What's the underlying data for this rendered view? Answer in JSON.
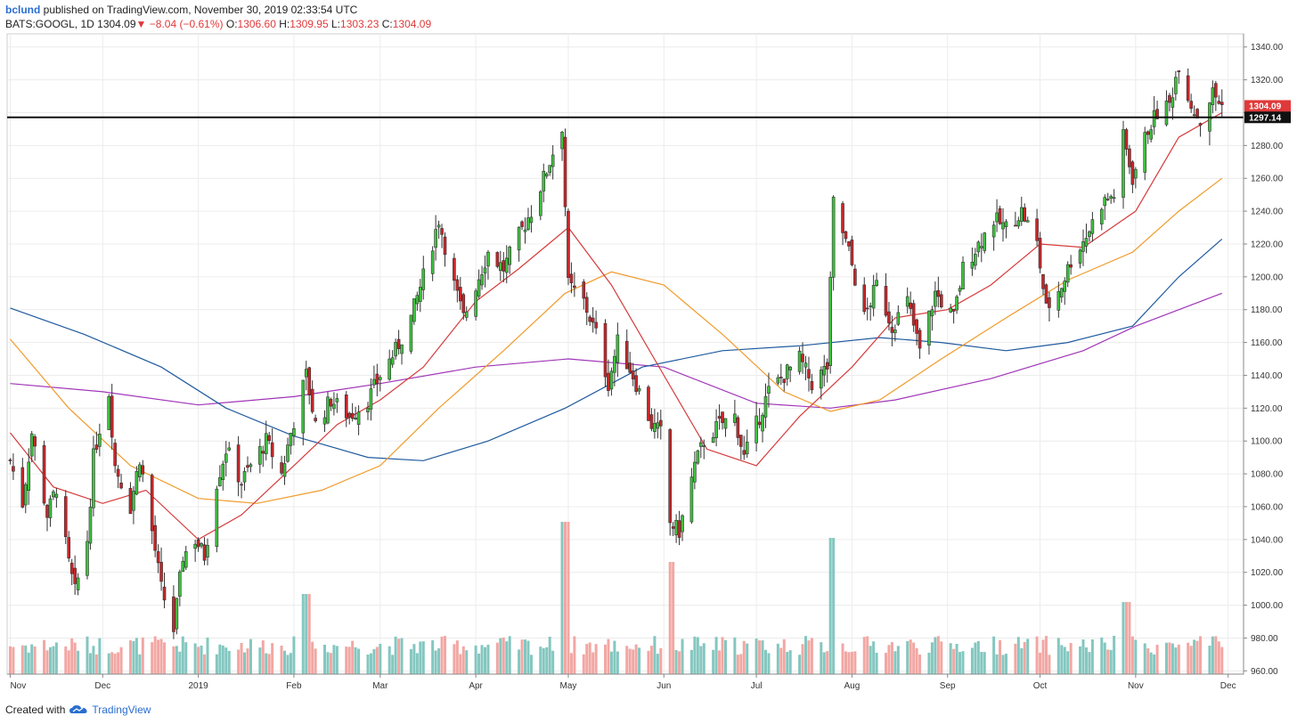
{
  "header": {
    "user": "bclund",
    "published_text": " published on TradingView.com, November 30, 2019 02:33:54 UTC",
    "symbol": "BATS:GOOGL, 1D",
    "last": "1304.09",
    "change": "−8.04 (−0.61%)",
    "o_label": "O:",
    "o_value": "1306.60",
    "h_label": "H:",
    "h_value": "1309.95",
    "l_label": "L:",
    "l_value": "1303.23",
    "c_label": "C:",
    "c_value": "1304.09"
  },
  "footer": {
    "created_with": "Created with",
    "brand": "TradingView"
  },
  "colors": {
    "up": "#3ec23e",
    "down": "#c8262a",
    "vol_up": "#84c7c0",
    "vol_down": "#f2a7a3",
    "ma20": "#d63a3a",
    "ma50": "#f09a2a",
    "ma100": "#1f5a9e",
    "ma200": "#a035b8",
    "price_tag": "#e0393a",
    "level_tag": "#111111"
  },
  "chart_data": {
    "type": "candlestick",
    "ylim": [
      958,
      1348
    ],
    "y_ticks": [
      "1340.00",
      "1320.00",
      "1300.00",
      "1280.00",
      "1260.00",
      "1240.00",
      "1220.00",
      "1200.00",
      "1180.00",
      "1160.00",
      "1140.00",
      "1120.00",
      "1100.00",
      "1080.00",
      "1060.00",
      "1040.00",
      "1020.00",
      "1000.00",
      "980.00",
      "960.00"
    ],
    "x_labels": [
      {
        "label": "Nov",
        "date": "2018-11-01"
      },
      {
        "label": "Dec",
        "date": "2018-12-01"
      },
      {
        "label": "2019",
        "date": "2019-01-01"
      },
      {
        "label": "Feb",
        "date": "2019-02-01"
      },
      {
        "label": "Mar",
        "date": "2019-03-01"
      },
      {
        "label": "Apr",
        "date": "2019-04-01"
      },
      {
        "label": "May",
        "date": "2019-05-01"
      },
      {
        "label": "Jun",
        "date": "2019-06-01"
      },
      {
        "label": "Jul",
        "date": "2019-07-01"
      },
      {
        "label": "Aug",
        "date": "2019-08-01"
      },
      {
        "label": "Sep",
        "date": "2019-09-01"
      },
      {
        "label": "Oct",
        "date": "2019-10-01"
      },
      {
        "label": "Nov",
        "date": "2019-11-01"
      },
      {
        "label": "Dec",
        "date": "2019-12-01"
      }
    ],
    "price_path": [
      [
        "2018-11-01",
        1088
      ],
      [
        "2018-11-05",
        1062
      ],
      [
        "2018-11-08",
        1105
      ],
      [
        "2018-11-13",
        1055
      ],
      [
        "2018-11-16",
        1072
      ],
      [
        "2018-11-20",
        1025
      ],
      [
        "2018-11-22",
        1008
      ],
      [
        "2018-11-26",
        1040
      ],
      [
        "2018-11-28",
        1090
      ],
      [
        "2018-11-30",
        1108
      ],
      [
        "2018-12-03",
        1130
      ],
      [
        "2018-12-05",
        1085
      ],
      [
        "2018-12-10",
        1060
      ],
      [
        "2018-12-13",
        1090
      ],
      [
        "2018-12-17",
        1045
      ],
      [
        "2018-12-20",
        1010
      ],
      [
        "2018-12-24",
        985
      ],
      [
        "2018-12-27",
        1030
      ],
      [
        "2018-12-31",
        1040
      ],
      [
        "2019-01-03",
        1030
      ],
      [
        "2019-01-07",
        1075
      ],
      [
        "2019-01-10",
        1095
      ],
      [
        "2019-01-15",
        1075
      ],
      [
        "2019-01-18",
        1085
      ],
      [
        "2019-01-23",
        1100
      ],
      [
        "2019-01-28",
        1080
      ],
      [
        "2019-01-31",
        1105
      ],
      [
        "2019-02-05",
        1140
      ],
      [
        "2019-02-08",
        1110
      ],
      [
        "2019-02-13",
        1125
      ],
      [
        "2019-02-19",
        1115
      ],
      [
        "2019-02-25",
        1125
      ],
      [
        "2019-03-01",
        1140
      ],
      [
        "2019-03-06",
        1155
      ],
      [
        "2019-03-11",
        1175
      ],
      [
        "2019-03-15",
        1200
      ],
      [
        "2019-03-20",
        1235
      ],
      [
        "2019-03-25",
        1195
      ],
      [
        "2019-03-28",
        1175
      ],
      [
        "2019-04-02",
        1200
      ],
      [
        "2019-04-05",
        1215
      ],
      [
        "2019-04-10",
        1205
      ],
      [
        "2019-04-15",
        1225
      ],
      [
        "2019-04-19",
        1240
      ],
      [
        "2019-04-24",
        1265
      ],
      [
        "2019-04-29",
        1292
      ],
      [
        "2019-05-01",
        1195
      ],
      [
        "2019-05-06",
        1185
      ],
      [
        "2019-05-10",
        1165
      ],
      [
        "2019-05-14",
        1135
      ],
      [
        "2019-05-17",
        1160
      ],
      [
        "2019-05-22",
        1140
      ],
      [
        "2019-05-28",
        1110
      ],
      [
        "2019-05-31",
        1105
      ],
      [
        "2019-06-03",
        1050
      ],
      [
        "2019-06-06",
        1045
      ],
      [
        "2019-06-11",
        1085
      ],
      [
        "2019-06-14",
        1100
      ],
      [
        "2019-06-19",
        1110
      ],
      [
        "2019-06-24",
        1115
      ],
      [
        "2019-06-27",
        1090
      ],
      [
        "2019-07-01",
        1110
      ],
      [
        "2019-07-05",
        1130
      ],
      [
        "2019-07-10",
        1140
      ],
      [
        "2019-07-15",
        1150
      ],
      [
        "2019-07-19",
        1135
      ],
      [
        "2019-07-24",
        1145
      ],
      [
        "2019-07-26",
        1245
      ],
      [
        "2019-07-31",
        1215
      ],
      [
        "2019-08-05",
        1175
      ],
      [
        "2019-08-09",
        1195
      ],
      [
        "2019-08-14",
        1170
      ],
      [
        "2019-08-19",
        1185
      ],
      [
        "2019-08-23",
        1155
      ],
      [
        "2019-08-28",
        1190
      ],
      [
        "2019-09-03",
        1175
      ],
      [
        "2019-09-06",
        1205
      ],
      [
        "2019-09-11",
        1220
      ],
      [
        "2019-09-16",
        1235
      ],
      [
        "2019-09-20",
        1230
      ],
      [
        "2019-09-25",
        1240
      ],
      [
        "2019-09-30",
        1220
      ],
      [
        "2019-10-03",
        1180
      ],
      [
        "2019-10-08",
        1195
      ],
      [
        "2019-10-11",
        1210
      ],
      [
        "2019-10-16",
        1225
      ],
      [
        "2019-10-21",
        1245
      ],
      [
        "2019-10-25",
        1250
      ],
      [
        "2019-10-28",
        1285
      ],
      [
        "2019-10-31",
        1260
      ],
      [
        "2019-11-05",
        1290
      ],
      [
        "2019-11-08",
        1300
      ],
      [
        "2019-11-12",
        1305
      ],
      [
        "2019-11-15",
        1330
      ],
      [
        "2019-11-19",
        1305
      ],
      [
        "2019-11-22",
        1295
      ],
      [
        "2019-11-26",
        1312
      ],
      [
        "2019-11-29",
        1304
      ]
    ],
    "ma20": [
      [
        "2018-11-01",
        1105
      ],
      [
        "2018-11-15",
        1072
      ],
      [
        "2018-12-01",
        1062
      ],
      [
        "2018-12-15",
        1070
      ],
      [
        "2019-01-01",
        1040
      ],
      [
        "2019-01-15",
        1055
      ],
      [
        "2019-02-01",
        1085
      ],
      [
        "2019-02-15",
        1110
      ],
      [
        "2019-03-01",
        1125
      ],
      [
        "2019-03-15",
        1145
      ],
      [
        "2019-04-01",
        1185
      ],
      [
        "2019-04-15",
        1205
      ],
      [
        "2019-05-01",
        1230
      ],
      [
        "2019-05-15",
        1195
      ],
      [
        "2019-06-01",
        1140
      ],
      [
        "2019-06-15",
        1095
      ],
      [
        "2019-07-01",
        1085
      ],
      [
        "2019-07-15",
        1115
      ],
      [
        "2019-08-01",
        1145
      ],
      [
        "2019-08-15",
        1175
      ],
      [
        "2019-09-01",
        1180
      ],
      [
        "2019-09-15",
        1195
      ],
      [
        "2019-10-01",
        1220
      ],
      [
        "2019-10-15",
        1218
      ],
      [
        "2019-11-01",
        1240
      ],
      [
        "2019-11-15",
        1285
      ],
      [
        "2019-11-29",
        1300
      ]
    ],
    "ma50": [
      [
        "2018-11-01",
        1162
      ],
      [
        "2018-11-20",
        1120
      ],
      [
        "2018-12-10",
        1085
      ],
      [
        "2019-01-01",
        1065
      ],
      [
        "2019-01-20",
        1062
      ],
      [
        "2019-02-10",
        1070
      ],
      [
        "2019-03-01",
        1085
      ],
      [
        "2019-03-20",
        1120
      ],
      [
        "2019-04-10",
        1155
      ],
      [
        "2019-04-30",
        1190
      ],
      [
        "2019-05-15",
        1203
      ],
      [
        "2019-06-01",
        1195
      ],
      [
        "2019-06-20",
        1165
      ],
      [
        "2019-07-10",
        1130
      ],
      [
        "2019-07-25",
        1118
      ],
      [
        "2019-08-10",
        1125
      ],
      [
        "2019-08-30",
        1150
      ],
      [
        "2019-09-20",
        1175
      ],
      [
        "2019-10-10",
        1198
      ],
      [
        "2019-10-31",
        1215
      ],
      [
        "2019-11-15",
        1240
      ],
      [
        "2019-11-29",
        1260
      ]
    ],
    "ma100": [
      [
        "2018-11-01",
        1181
      ],
      [
        "2018-11-25",
        1165
      ],
      [
        "2018-12-20",
        1145
      ],
      [
        "2019-01-10",
        1120
      ],
      [
        "2019-02-01",
        1103
      ],
      [
        "2019-02-25",
        1090
      ],
      [
        "2019-03-15",
        1088
      ],
      [
        "2019-04-05",
        1100
      ],
      [
        "2019-04-30",
        1120
      ],
      [
        "2019-05-25",
        1145
      ],
      [
        "2019-06-20",
        1155
      ],
      [
        "2019-07-15",
        1158
      ],
      [
        "2019-08-10",
        1163
      ],
      [
        "2019-08-30",
        1160
      ],
      [
        "2019-09-20",
        1155
      ],
      [
        "2019-10-10",
        1160
      ],
      [
        "2019-10-31",
        1170
      ],
      [
        "2019-11-15",
        1200
      ],
      [
        "2019-11-29",
        1223
      ]
    ],
    "ma200": [
      [
        "2018-11-01",
        1135
      ],
      [
        "2018-12-01",
        1130
      ],
      [
        "2019-01-01",
        1122
      ],
      [
        "2019-02-01",
        1127
      ],
      [
        "2019-03-01",
        1135
      ],
      [
        "2019-04-01",
        1145
      ],
      [
        "2019-05-01",
        1150
      ],
      [
        "2019-06-01",
        1145
      ],
      [
        "2019-07-01",
        1123
      ],
      [
        "2019-07-25",
        1120
      ],
      [
        "2019-08-15",
        1125
      ],
      [
        "2019-09-15",
        1138
      ],
      [
        "2019-10-15",
        1155
      ],
      [
        "2019-11-01",
        1170
      ],
      [
        "2019-11-29",
        1190
      ]
    ],
    "horizontal_level": 1297.14,
    "last_price": 1304.09,
    "price_tag_label": "1304.09",
    "level_tag_label": "1297.14",
    "volume_spikes": [
      {
        "date": "2019-04-30",
        "height": 0.95,
        "up": true
      },
      {
        "date": "2019-06-03",
        "height": 0.7,
        "up": false
      },
      {
        "date": "2019-07-26",
        "height": 0.85,
        "up": true
      },
      {
        "date": "2019-10-29",
        "height": 0.45,
        "up": true
      },
      {
        "date": "2019-02-05",
        "height": 0.5,
        "up": true
      }
    ]
  }
}
